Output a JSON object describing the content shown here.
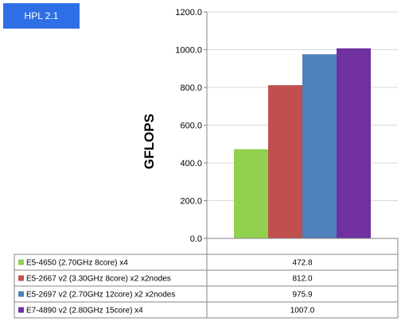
{
  "badge": {
    "label": "HPL 2.1"
  },
  "chart_data": {
    "type": "bar",
    "title": "",
    "xlabel": "",
    "ylabel": "GFLOPS",
    "ylim": [
      0,
      1200
    ],
    "grid": true,
    "y_ticks": [
      "0.0",
      "200.0",
      "400.0",
      "600.0",
      "800.0",
      "1000.0",
      "1200.0"
    ],
    "categories": [
      ""
    ],
    "series": [
      {
        "name": "E5-4650 (2.70GHz 8core) x4",
        "values": [
          472.8
        ],
        "label": "472.8",
        "color": "#92d050"
      },
      {
        "name": "E5-2667 v2 (3.30GHz 8core) x2 x2nodes",
        "values": [
          812.0
        ],
        "label": "812.0",
        "color": "#c0504d"
      },
      {
        "name": "E5-2697 v2 (2.70GHz 12core) x2 x2nodes",
        "values": [
          975.9
        ],
        "label": "975.9",
        "color": "#4f81bd"
      },
      {
        "name": "E7-4890 v2 (2.80GHz 15core) x4",
        "values": [
          1007.0
        ],
        "label": "1007.0",
        "color": "#7030a0"
      }
    ]
  }
}
